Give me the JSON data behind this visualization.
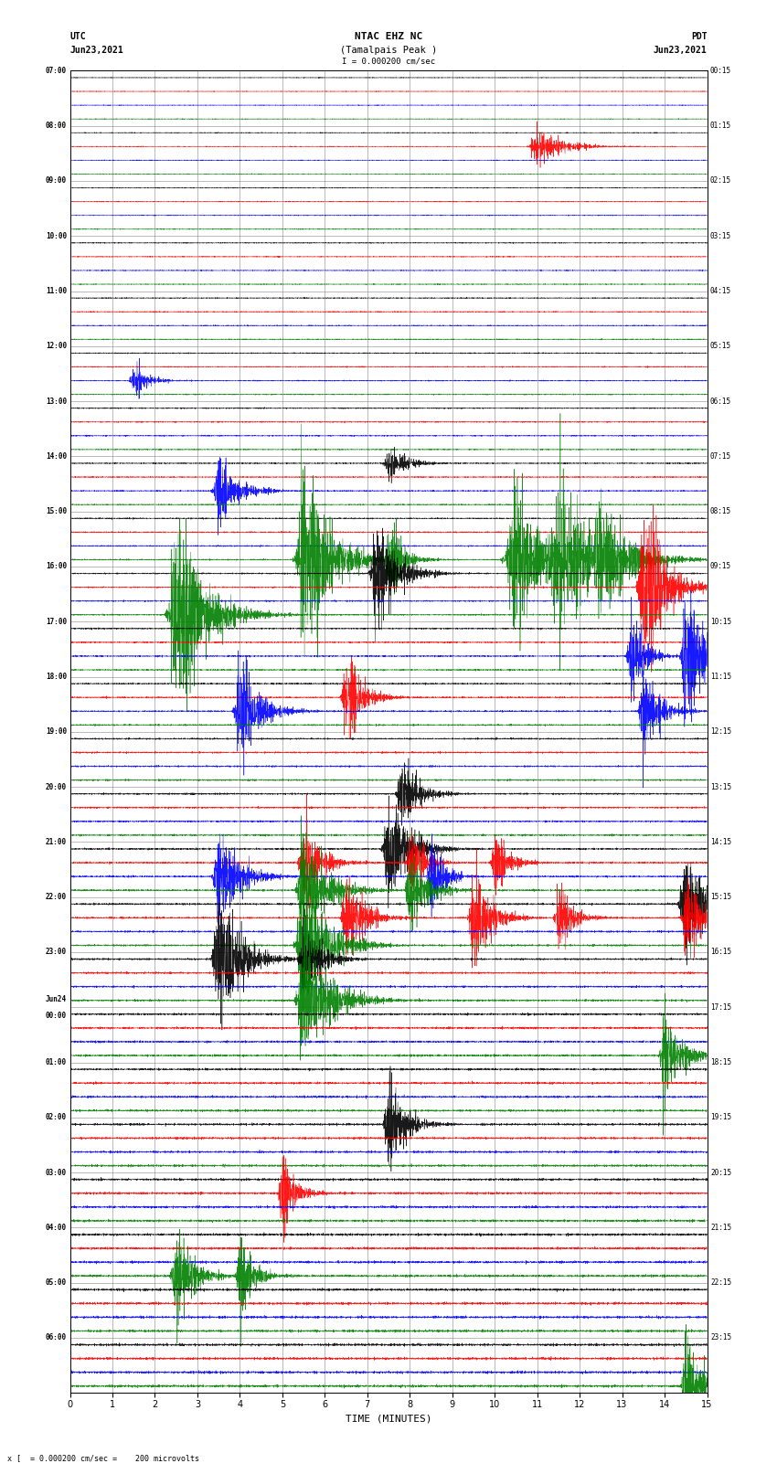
{
  "title_line1": "NTAC EHZ NC",
  "title_line2": "(Tamalpais Peak )",
  "title_line3": "I = 0.000200 cm/sec",
  "left_label_top": "UTC",
  "left_label_date": "Jun23,2021",
  "right_label_top": "PDT",
  "right_label_date": "Jun23,2021",
  "xlabel": "TIME (MINUTES)",
  "bottom_note": "x [  = 0.000200 cm/sec =    200 microvolts",
  "utc_times": [
    "07:00",
    "08:00",
    "09:00",
    "10:00",
    "11:00",
    "12:00",
    "13:00",
    "14:00",
    "15:00",
    "16:00",
    "17:00",
    "18:00",
    "19:00",
    "20:00",
    "21:00",
    "22:00",
    "23:00",
    "Jun24\n00:00",
    "01:00",
    "02:00",
    "03:00",
    "04:00",
    "05:00",
    "06:00"
  ],
  "pdt_times": [
    "00:15",
    "01:15",
    "02:15",
    "03:15",
    "04:15",
    "05:15",
    "06:15",
    "07:15",
    "08:15",
    "09:15",
    "10:15",
    "11:15",
    "12:15",
    "13:15",
    "14:15",
    "15:15",
    "16:15",
    "17:15",
    "18:15",
    "19:15",
    "20:15",
    "21:15",
    "22:15",
    "23:15"
  ],
  "n_rows": 24,
  "n_traces_per_row": 4,
  "colors": [
    "black",
    "red",
    "blue",
    "green"
  ],
  "background_color": "white",
  "grid_color": "#777777",
  "xmin": 0,
  "xmax": 15,
  "seed": 42,
  "fig_width": 8.5,
  "fig_height": 16.13,
  "events": [
    [
      1,
      1,
      11.0,
      3.5,
      80
    ],
    [
      5,
      2,
      1.5,
      3.0,
      40
    ],
    [
      7,
      0,
      7.5,
      2.5,
      50
    ],
    [
      7,
      2,
      3.5,
      4.0,
      60
    ],
    [
      8,
      3,
      5.5,
      12.0,
      80
    ],
    [
      8,
      3,
      7.5,
      5.0,
      40
    ],
    [
      8,
      3,
      10.5,
      8.0,
      120
    ],
    [
      8,
      3,
      11.5,
      9.0,
      100
    ],
    [
      8,
      3,
      12.5,
      7.0,
      80
    ],
    [
      9,
      3,
      2.5,
      12.0,
      80
    ],
    [
      9,
      0,
      7.2,
      7.0,
      60
    ],
    [
      9,
      1,
      13.5,
      10.0,
      60
    ],
    [
      10,
      2,
      14.5,
      8.0,
      50
    ],
    [
      10,
      2,
      13.2,
      5.0,
      40
    ],
    [
      11,
      1,
      6.5,
      4.0,
      50
    ],
    [
      11,
      2,
      4.0,
      5.0,
      60
    ],
    [
      11,
      2,
      13.5,
      4.0,
      50
    ],
    [
      13,
      0,
      7.8,
      3.5,
      50
    ],
    [
      14,
      0,
      7.5,
      5.0,
      60
    ],
    [
      14,
      1,
      5.5,
      4.0,
      50
    ],
    [
      14,
      1,
      8.0,
      3.5,
      40
    ],
    [
      14,
      1,
      10.0,
      3.0,
      40
    ],
    [
      14,
      2,
      3.5,
      5.0,
      60
    ],
    [
      14,
      2,
      8.5,
      3.5,
      40
    ],
    [
      14,
      3,
      5.5,
      5.0,
      70
    ],
    [
      14,
      3,
      8.0,
      4.0,
      50
    ],
    [
      15,
      0,
      14.5,
      5.0,
      70
    ],
    [
      15,
      1,
      6.5,
      4.0,
      50
    ],
    [
      15,
      1,
      9.5,
      4.5,
      50
    ],
    [
      15,
      1,
      11.5,
      3.5,
      40
    ],
    [
      15,
      1,
      14.5,
      4.0,
      40
    ],
    [
      15,
      3,
      5.5,
      5.0,
      80
    ],
    [
      16,
      0,
      3.5,
      5.0,
      70
    ],
    [
      16,
      0,
      5.5,
      4.0,
      50
    ],
    [
      16,
      3,
      5.5,
      5.0,
      80
    ],
    [
      17,
      3,
      14.0,
      4.0,
      50
    ],
    [
      19,
      0,
      7.5,
      3.5,
      50
    ],
    [
      20,
      1,
      5.0,
      3.0,
      40
    ],
    [
      21,
      3,
      2.5,
      3.5,
      50
    ],
    [
      21,
      3,
      4.0,
      3.0,
      40
    ],
    [
      23,
      3,
      14.5,
      4.0,
      50
    ]
  ]
}
